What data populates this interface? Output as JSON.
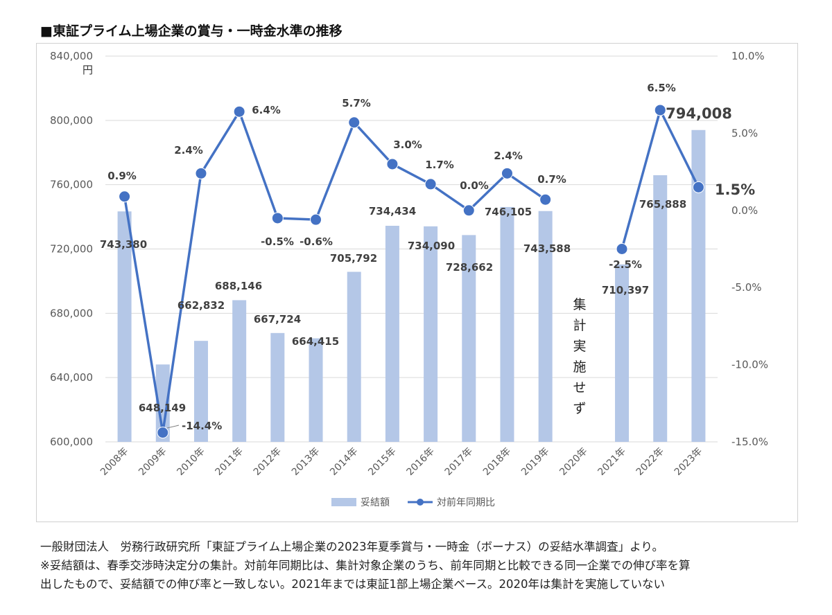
{
  "title": "■東証プライム上場企業の賞与・一時金水準の推移",
  "chart_data": {
    "type": "bar+line",
    "categories": [
      "2008年",
      "2009年",
      "2010年",
      "2011年",
      "2012年",
      "2013年",
      "2014年",
      "2015年",
      "2016年",
      "2017年",
      "2018年",
      "2019年",
      "2020年",
      "2021年",
      "2022年",
      "2023年"
    ],
    "series": [
      {
        "name": "妥結額",
        "type": "bar",
        "axis": "left",
        "color": "#b4c7e7",
        "values": [
          743380,
          648149,
          662832,
          688146,
          667724,
          664415,
          705792,
          734434,
          734090,
          728662,
          746105,
          743588,
          null,
          710397,
          765888,
          794008
        ],
        "labels": [
          "743,380",
          "648,149",
          "662,832",
          "688,146",
          "667,724",
          "664,415",
          "705,792",
          "734,434",
          "734,090",
          "728,662",
          "746,105",
          "743,588",
          "",
          "710,397",
          "765,888",
          "794,008"
        ]
      },
      {
        "name": "対前年同期比",
        "type": "line",
        "axis": "right",
        "color": "#4472c4",
        "values": [
          0.9,
          -14.4,
          2.4,
          6.4,
          -0.5,
          -0.6,
          5.7,
          3.0,
          1.7,
          0.0,
          2.4,
          0.7,
          null,
          -2.5,
          6.5,
          1.5
        ],
        "labels": [
          "0.9%",
          "-14.4%",
          "2.4%",
          "6.4%",
          "-0.5%",
          "-0.6%",
          "5.7%",
          "3.0%",
          "1.7%",
          "0.0%",
          "2.4%",
          "0.7%",
          "",
          "-2.5%",
          "6.5%",
          "1.5%"
        ]
      }
    ],
    "y_left": {
      "min": 600000,
      "max": 840000,
      "step": 40000,
      "unit": "円",
      "ticks": [
        "600,000",
        "640,000",
        "680,000",
        "720,000",
        "760,000",
        "800,000",
        "840,000"
      ]
    },
    "y_right": {
      "min": -15,
      "max": 10,
      "step": 5,
      "ticks": [
        "-15.0%",
        "-10.0%",
        "-5.0%",
        "0.0%",
        "5.0%",
        "10.0%"
      ]
    },
    "annotation_2020": [
      "集",
      "計",
      "実",
      "施",
      "せ",
      "ず"
    ],
    "legend_position": "bottom",
    "grid": "horizontal"
  },
  "notes": {
    "line1": "一般財団法人　労務行政研究所「東証プライム上場企業の2023年夏季賞与・一時金（ボーナス）の妥結水準調査」より。",
    "line2": "※妥結額は、春季交渉時決定分の集計。対前年同期比は、集計対象企業のうち、前年同期と比較できる同一企業での伸び率を算",
    "line3": "出したもので、妥結額での伸び率と一致しない。2021年までは東証1部上場企業ベース。2020年は集計を実施していない"
  }
}
